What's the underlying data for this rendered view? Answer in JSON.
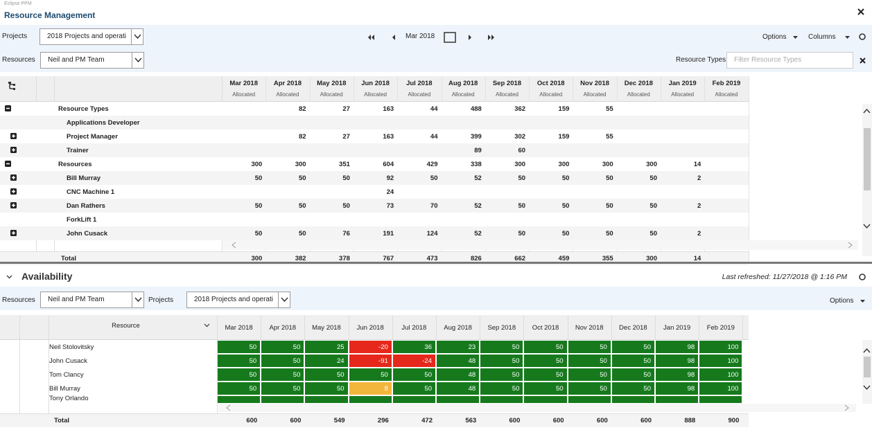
{
  "header": {
    "app": "Eclipse PPM",
    "title": "Resource Management"
  },
  "toolbar": {
    "projects_label": "Projects",
    "projects_value": "2018 Projects and operati",
    "period": "Mar 2018",
    "options": "Options",
    "columns": "Columns",
    "resources_label": "Resources",
    "resources_value": "Neil and PM Team",
    "resource_types_label": "Resource Types",
    "resource_types_placeholder": "Filter Resource Types"
  },
  "allocation": {
    "columns": [
      {
        "month": "Mar 2018",
        "sub": "Allocated"
      },
      {
        "month": "Apr 2018",
        "sub": "Allocated"
      },
      {
        "month": "May 2018",
        "sub": "Allocated"
      },
      {
        "month": "Jun 2018",
        "sub": "Allocated"
      },
      {
        "month": "Jul 2018",
        "sub": "Allocated"
      },
      {
        "month": "Aug 2018",
        "sub": "Allocated"
      },
      {
        "month": "Sep 2018",
        "sub": "Allocated"
      },
      {
        "month": "Oct 2018",
        "sub": "Allocated"
      },
      {
        "month": "Nov 2018",
        "sub": "Allocated"
      },
      {
        "month": "Dec 2018",
        "sub": "Allocated"
      },
      {
        "month": "Jan 2019",
        "sub": "Allocated"
      },
      {
        "month": "Feb 2019",
        "sub": "Allocated"
      }
    ],
    "rows": [
      {
        "name": "Resource Types",
        "kind": "group",
        "toggle": "collapse",
        "values": [
          null,
          82,
          27,
          163,
          44,
          488,
          362,
          159,
          55,
          null,
          null,
          null
        ]
      },
      {
        "name": "Applications Developer",
        "kind": "item",
        "toggle": null,
        "values": [
          null,
          null,
          null,
          null,
          null,
          null,
          null,
          null,
          null,
          null,
          null,
          null
        ]
      },
      {
        "name": "Project Manager",
        "kind": "item",
        "toggle": "expand",
        "values": [
          null,
          82,
          27,
          163,
          44,
          399,
          302,
          159,
          55,
          null,
          null,
          null
        ]
      },
      {
        "name": "Trainer",
        "kind": "item",
        "toggle": "expand",
        "values": [
          null,
          null,
          null,
          null,
          null,
          89,
          60,
          null,
          null,
          null,
          null,
          null
        ]
      },
      {
        "name": "Resources",
        "kind": "group",
        "toggle": "collapse",
        "values": [
          300,
          300,
          351,
          604,
          429,
          338,
          300,
          300,
          300,
          300,
          14,
          null
        ]
      },
      {
        "name": "Bill Murray",
        "kind": "item",
        "toggle": "expand",
        "values": [
          50,
          50,
          50,
          92,
          50,
          52,
          50,
          50,
          50,
          50,
          2,
          null
        ]
      },
      {
        "name": "CNC Machine 1",
        "kind": "item",
        "toggle": "expand",
        "values": [
          null,
          null,
          null,
          24,
          null,
          null,
          null,
          null,
          null,
          null,
          null,
          null
        ]
      },
      {
        "name": "Dan Rathers",
        "kind": "item",
        "toggle": "expand",
        "values": [
          50,
          50,
          50,
          73,
          70,
          52,
          50,
          50,
          50,
          50,
          2,
          null
        ]
      },
      {
        "name": "ForkLift 1",
        "kind": "item",
        "toggle": null,
        "values": [
          null,
          null,
          null,
          null,
          null,
          null,
          null,
          null,
          null,
          null,
          null,
          null
        ]
      },
      {
        "name": "John Cusack",
        "kind": "item",
        "toggle": "expand",
        "values": [
          50,
          50,
          76,
          191,
          124,
          52,
          50,
          50,
          50,
          50,
          2,
          null
        ]
      }
    ],
    "total": {
      "label": "Total",
      "values": [
        300,
        382,
        378,
        767,
        473,
        826,
        662,
        459,
        355,
        300,
        14,
        null
      ]
    }
  },
  "availability": {
    "title": "Availability",
    "last_refreshed": "Last refreshed: 11/27/2018 @ 1:16 PM",
    "resources_label": "Resources",
    "resources_value": "Neil and PM Team",
    "projects_label": "Projects",
    "projects_value": "2018 Projects and operati",
    "options": "Options",
    "resource_header": "Resource",
    "months": [
      "Mar 2018",
      "Apr 2018",
      "May 2018",
      "Jun 2018",
      "Jul 2018",
      "Aug 2018",
      "Sep 2018",
      "Oct 2018",
      "Nov 2018",
      "Dec 2018",
      "Jan 2019",
      "Feb 2019"
    ],
    "rows": [
      {
        "name": "Neil Stolovitsky",
        "values": [
          50,
          50,
          25,
          -20,
          36,
          23,
          50,
          50,
          50,
          50,
          98,
          100
        ],
        "colors": [
          "#167a1d",
          "#167a1d",
          "#167a1d",
          "#e5281b",
          "#167a1d",
          "#167a1d",
          "#167a1d",
          "#167a1d",
          "#167a1d",
          "#167a1d",
          "#167a1d",
          "#167a1d"
        ]
      },
      {
        "name": "John Cusack",
        "values": [
          50,
          50,
          24,
          -91,
          -24,
          48,
          50,
          50,
          50,
          50,
          98,
          100
        ],
        "colors": [
          "#167a1d",
          "#167a1d",
          "#167a1d",
          "#e5281b",
          "#e5281b",
          "#167a1d",
          "#167a1d",
          "#167a1d",
          "#167a1d",
          "#167a1d",
          "#167a1d",
          "#167a1d"
        ]
      },
      {
        "name": "Tom Clancy",
        "values": [
          50,
          50,
          50,
          50,
          50,
          48,
          50,
          50,
          50,
          50,
          98,
          100
        ],
        "colors": [
          "#167a1d",
          "#167a1d",
          "#167a1d",
          "#167a1d",
          "#167a1d",
          "#167a1d",
          "#167a1d",
          "#167a1d",
          "#167a1d",
          "#167a1d",
          "#167a1d",
          "#167a1d"
        ]
      },
      {
        "name": "Bill Murray",
        "values": [
          50,
          50,
          50,
          8,
          50,
          48,
          50,
          50,
          50,
          50,
          98,
          100
        ],
        "colors": [
          "#167a1d",
          "#167a1d",
          "#167a1d",
          "#f3b63c",
          "#167a1d",
          "#167a1d",
          "#167a1d",
          "#167a1d",
          "#167a1d",
          "#167a1d",
          "#167a1d",
          "#167a1d"
        ]
      }
    ],
    "partial_row": "Tony Orlando",
    "total": {
      "label": "Total",
      "values": [
        600,
        600,
        549,
        296,
        472,
        563,
        600,
        600,
        600,
        600,
        888,
        900
      ]
    }
  }
}
